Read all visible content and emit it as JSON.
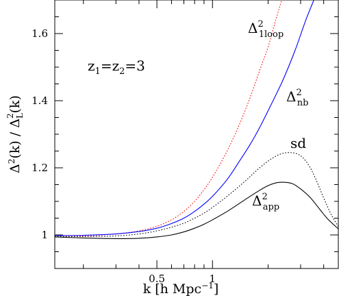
{
  "chart_data": {
    "type": "line",
    "xscale": "log",
    "xlim": [
      0.14,
      4.8
    ],
    "ylim": [
      0.9,
      1.7
    ],
    "xlabel": {
      "main": "k [h Mpc",
      "sup": "−1",
      "tail": "]"
    },
    "ylabel": {
      "a": "Δ",
      "a_sup": "2",
      "b": "(k) / Δ",
      "b_sub": "L",
      "b_sup": "2",
      "c": "(k)"
    },
    "x_ticks": [
      {
        "value": 0.5,
        "label": "0.5"
      },
      {
        "value": 1,
        "label": "1"
      }
    ],
    "y_ticks": [
      {
        "value": 1,
        "label": "1"
      },
      {
        "value": 1.2,
        "label": "1.2"
      },
      {
        "value": 1.4,
        "label": "1.4"
      },
      {
        "value": 1.6,
        "label": "1.6"
      }
    ],
    "redshift_label": {
      "z1": "z",
      "z1_sub": "1",
      "eq1": "=",
      "z2": "z",
      "z2_sub": "2",
      "eq2": "=3"
    },
    "series": [
      {
        "key": "oneloop",
        "label": {
          "main": "Δ",
          "sup": "2",
          "sub": "1loop"
        },
        "color": "#ff0000",
        "style": "dotted",
        "x": [
          0.14,
          0.2,
          0.3,
          0.4,
          0.5,
          0.6,
          0.7,
          0.8,
          0.9,
          1.0,
          1.2,
          1.4,
          1.6,
          1.8,
          2.0,
          2.2,
          2.4
        ],
        "y": [
          0.995,
          0.997,
          1.003,
          1.012,
          1.026,
          1.045,
          1.07,
          1.1,
          1.135,
          1.172,
          1.25,
          1.33,
          1.41,
          1.49,
          1.56,
          1.64,
          1.71
        ]
      },
      {
        "key": "nb",
        "label": {
          "main": "Δ",
          "sup": "2",
          "sub": "nb"
        },
        "color": "#0000ff",
        "style": "solid",
        "x": [
          0.14,
          0.2,
          0.3,
          0.4,
          0.5,
          0.6,
          0.7,
          0.8,
          0.9,
          1.0,
          1.2,
          1.4,
          1.6,
          1.8,
          2.0,
          2.4,
          2.8,
          3.2,
          3.6
        ],
        "y": [
          0.998,
          0.999,
          1.003,
          1.01,
          1.02,
          1.034,
          1.05,
          1.07,
          1.092,
          1.115,
          1.165,
          1.22,
          1.27,
          1.32,
          1.37,
          1.46,
          1.55,
          1.64,
          1.71
        ]
      },
      {
        "key": "sd",
        "label": {
          "main": "sd"
        },
        "color": "#000000",
        "style": "dotted",
        "x": [
          0.14,
          0.2,
          0.3,
          0.4,
          0.5,
          0.6,
          0.7,
          0.8,
          0.9,
          1.0,
          1.2,
          1.5,
          1.8,
          2.1,
          2.4,
          2.7,
          3.0,
          3.3,
          3.6,
          4.0,
          4.4,
          4.8
        ],
        "y": [
          0.995,
          0.995,
          0.997,
          1.003,
          1.012,
          1.023,
          1.035,
          1.05,
          1.065,
          1.082,
          1.115,
          1.16,
          1.2,
          1.228,
          1.243,
          1.245,
          1.236,
          1.21,
          1.17,
          1.11,
          1.06,
          1.025
        ]
      },
      {
        "key": "app",
        "label": {
          "main": "Δ",
          "sup": "2",
          "sub": "app"
        },
        "color": "#000000",
        "style": "solid",
        "x": [
          0.14,
          0.2,
          0.3,
          0.4,
          0.5,
          0.6,
          0.7,
          0.8,
          0.9,
          1.0,
          1.2,
          1.5,
          1.8,
          2.0,
          2.2,
          2.4,
          2.7,
          3.0,
          3.4,
          3.8,
          4.2,
          4.8
        ],
        "y": [
          0.994,
          0.991,
          0.989,
          0.99,
          0.994,
          1.0,
          1.009,
          1.02,
          1.032,
          1.045,
          1.07,
          1.105,
          1.133,
          1.147,
          1.155,
          1.157,
          1.153,
          1.137,
          1.11,
          1.077,
          1.048,
          1.018
        ]
      }
    ]
  }
}
